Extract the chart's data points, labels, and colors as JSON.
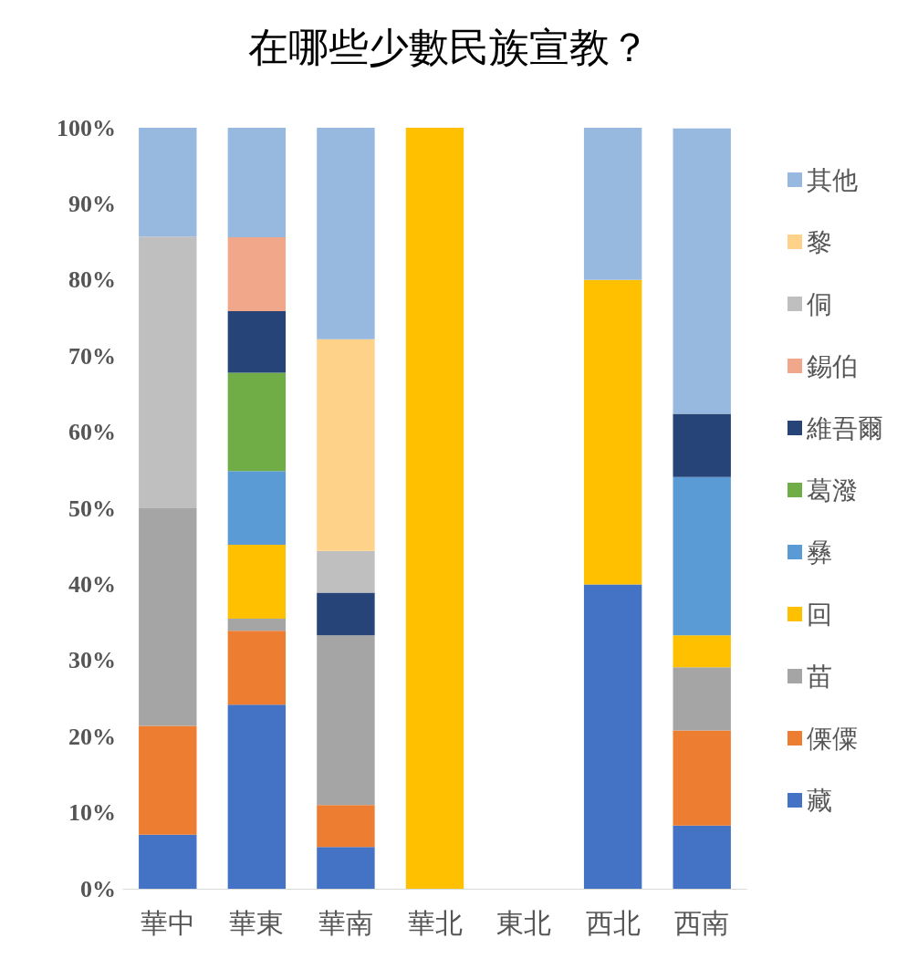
{
  "chart_data": {
    "type": "bar",
    "title": "在哪些少數民族宣教？",
    "stacked": true,
    "categories": [
      "華中",
      "華東",
      "華南",
      "華北",
      "東北",
      "西北",
      "西南"
    ],
    "series": [
      {
        "name": "藏",
        "color": "#4472c4",
        "values": [
          7.1,
          24.2,
          5.5,
          null,
          null,
          40,
          8.3
        ]
      },
      {
        "name": "傈僳",
        "color": "#ed7d31",
        "values": [
          14.3,
          9.7,
          5.5,
          null,
          null,
          null,
          12.5
        ]
      },
      {
        "name": "苗",
        "color": "#a5a5a5",
        "values": [
          28.6,
          1.6,
          22.3,
          null,
          null,
          null,
          8.3
        ]
      },
      {
        "name": "回",
        "color": "#ffc000",
        "values": [
          null,
          9.7,
          null,
          100,
          null,
          40,
          4.2
        ]
      },
      {
        "name": "彝",
        "color": "#5b9bd5",
        "values": [
          null,
          9.7,
          null,
          null,
          null,
          null,
          20.8
        ]
      },
      {
        "name": "葛潑",
        "color": "#70ad47",
        "values": [
          null,
          12.9,
          null,
          null,
          null,
          null,
          null
        ]
      },
      {
        "name": "維吾爾",
        "color": "#264478",
        "values": [
          null,
          8.1,
          5.6,
          null,
          null,
          null,
          8.3
        ]
      },
      {
        "name": "錫伯",
        "color": "#f1a78a",
        "values": [
          null,
          9.7,
          null,
          null,
          null,
          null,
          null
        ]
      },
      {
        "name": "侗",
        "color": "#bfbfbf",
        "values": [
          35.7,
          null,
          5.5,
          null,
          null,
          null,
          null
        ]
      },
      {
        "name": "黎",
        "color": "#ffd28a",
        "values": [
          null,
          null,
          27.8,
          null,
          null,
          null,
          null
        ]
      },
      {
        "name": "其他",
        "color": "#97b9e0",
        "values": [
          14.3,
          14.4,
          27.8,
          null,
          null,
          20,
          37.5
        ]
      }
    ],
    "ylim": [
      0,
      100
    ],
    "yticks": [
      {
        "value": 0,
        "label": "0%"
      },
      {
        "value": 10,
        "label": "10%"
      },
      {
        "value": 20,
        "label": "20%"
      },
      {
        "value": 30,
        "label": "30%"
      },
      {
        "value": 40,
        "label": "40%"
      },
      {
        "value": 50,
        "label": "50%"
      },
      {
        "value": 60,
        "label": "60%"
      },
      {
        "value": 70,
        "label": "70%"
      },
      {
        "value": 80,
        "label": "80%"
      },
      {
        "value": 90,
        "label": "90%"
      },
      {
        "value": 100,
        "label": "100%"
      }
    ],
    "grid": false,
    "legend": "right"
  }
}
